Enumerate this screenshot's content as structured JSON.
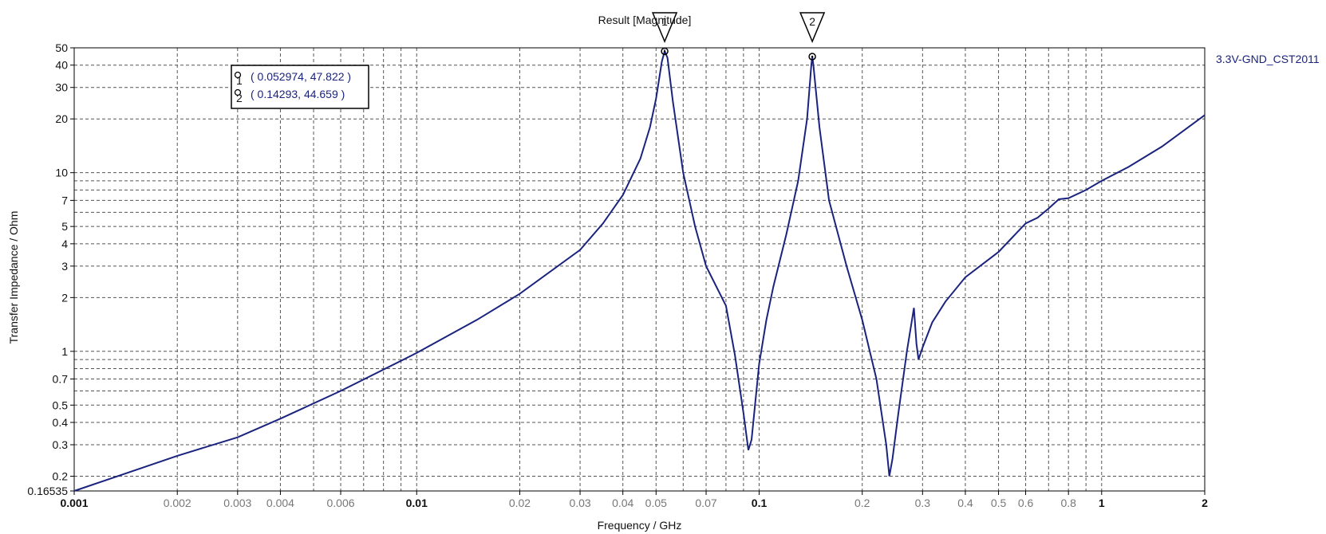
{
  "chart_data": {
    "type": "line",
    "title": "Result [Magnitude]",
    "xlabel": "Frequency / GHz",
    "ylabel": "Transfer Impedance / Ohm",
    "x_scale": "log",
    "y_scale": "log",
    "xlim": [
      0.001,
      2
    ],
    "ylim": [
      0.16535,
      50
    ],
    "grid": true,
    "legend_position": "top-right",
    "x_tick_labels": [
      {
        "value": 0.001,
        "label": "0.001",
        "major": true
      },
      {
        "value": 0.002,
        "label": "0.002",
        "major": false
      },
      {
        "value": 0.003,
        "label": "0.003",
        "major": false
      },
      {
        "value": 0.004,
        "label": "0.004",
        "major": false
      },
      {
        "value": 0.006,
        "label": "0.006",
        "major": false
      },
      {
        "value": 0.01,
        "label": "0.01",
        "major": true
      },
      {
        "value": 0.02,
        "label": "0.02",
        "major": false
      },
      {
        "value": 0.03,
        "label": "0.03",
        "major": false
      },
      {
        "value": 0.04,
        "label": "0.04",
        "major": false
      },
      {
        "value": 0.05,
        "label": "0.05",
        "major": false
      },
      {
        "value": 0.07,
        "label": "0.07",
        "major": false
      },
      {
        "value": 0.1,
        "label": "0.1",
        "major": true
      },
      {
        "value": 0.2,
        "label": "0.2",
        "major": false
      },
      {
        "value": 0.3,
        "label": "0.3",
        "major": false
      },
      {
        "value": 0.4,
        "label": "0.4",
        "major": false
      },
      {
        "value": 0.5,
        "label": "0.5",
        "major": false
      },
      {
        "value": 0.6,
        "label": "0.6",
        "major": false
      },
      {
        "value": 0.8,
        "label": "0.8",
        "major": false
      },
      {
        "value": 1,
        "label": "1",
        "major": true
      },
      {
        "value": 2,
        "label": "2",
        "major": true
      }
    ],
    "y_tick_labels": [
      {
        "value": 50,
        "label": "50"
      },
      {
        "value": 40,
        "label": "40"
      },
      {
        "value": 30,
        "label": "30"
      },
      {
        "value": 20,
        "label": "20"
      },
      {
        "value": 10,
        "label": "10"
      },
      {
        "value": 7,
        "label": "7"
      },
      {
        "value": 5,
        "label": "5"
      },
      {
        "value": 4,
        "label": "4"
      },
      {
        "value": 3,
        "label": "3"
      },
      {
        "value": 2,
        "label": "2"
      },
      {
        "value": 1,
        "label": "1"
      },
      {
        "value": 0.7,
        "label": "0.7"
      },
      {
        "value": 0.5,
        "label": "0.5"
      },
      {
        "value": 0.4,
        "label": "0.4"
      },
      {
        "value": 0.3,
        "label": "0.3"
      },
      {
        "value": 0.2,
        "label": "0.2"
      },
      {
        "value": 0.16535,
        "label": "0.16535"
      }
    ],
    "series": [
      {
        "name": "3.3V-GND_CST2011",
        "color": "#1a237e",
        "points": [
          [
            0.001,
            0.16535
          ],
          [
            0.002,
            0.26
          ],
          [
            0.003,
            0.33
          ],
          [
            0.004,
            0.42
          ],
          [
            0.006,
            0.6
          ],
          [
            0.01,
            0.98
          ],
          [
            0.015,
            1.5
          ],
          [
            0.02,
            2.1
          ],
          [
            0.03,
            3.7
          ],
          [
            0.035,
            5.2
          ],
          [
            0.04,
            7.5
          ],
          [
            0.045,
            12.0
          ],
          [
            0.048,
            18.0
          ],
          [
            0.05,
            26.0
          ],
          [
            0.052,
            42.0
          ],
          [
            0.052974,
            47.822
          ],
          [
            0.054,
            44.0
          ],
          [
            0.056,
            25.0
          ],
          [
            0.06,
            10.0
          ],
          [
            0.065,
            5.0
          ],
          [
            0.07,
            3.0
          ],
          [
            0.08,
            1.8
          ],
          [
            0.085,
            0.95
          ],
          [
            0.09,
            0.45
          ],
          [
            0.093,
            0.28
          ],
          [
            0.095,
            0.32
          ],
          [
            0.1,
            0.85
          ],
          [
            0.105,
            1.5
          ],
          [
            0.11,
            2.3
          ],
          [
            0.12,
            4.5
          ],
          [
            0.13,
            9.0
          ],
          [
            0.138,
            20.0
          ],
          [
            0.142,
            40.0
          ],
          [
            0.14293,
            44.659
          ],
          [
            0.144,
            40.0
          ],
          [
            0.15,
            18.0
          ],
          [
            0.16,
            7.0
          ],
          [
            0.18,
            3.0
          ],
          [
            0.2,
            1.5
          ],
          [
            0.22,
            0.7
          ],
          [
            0.235,
            0.3
          ],
          [
            0.24,
            0.2
          ],
          [
            0.245,
            0.25
          ],
          [
            0.255,
            0.45
          ],
          [
            0.27,
            1.0
          ],
          [
            0.283,
            1.75
          ],
          [
            0.288,
            1.1
          ],
          [
            0.292,
            0.9
          ],
          [
            0.3,
            1.05
          ],
          [
            0.32,
            1.45
          ],
          [
            0.35,
            1.9
          ],
          [
            0.4,
            2.6
          ],
          [
            0.5,
            3.6
          ],
          [
            0.6,
            5.2
          ],
          [
            0.65,
            5.6
          ],
          [
            0.7,
            6.3
          ],
          [
            0.75,
            7.1
          ],
          [
            0.8,
            7.2
          ],
          [
            0.9,
            8.0
          ],
          [
            1.0,
            9.0
          ],
          [
            1.2,
            10.8
          ],
          [
            1.5,
            14.0
          ],
          [
            2.0,
            21.0
          ]
        ]
      }
    ],
    "markers": [
      {
        "id": "1",
        "x": 0.052974,
        "y": 47.822,
        "label": "( 0.052974, 47.822 )"
      },
      {
        "id": "2",
        "x": 0.14293,
        "y": 44.659,
        "label": "( 0.14293, 44.659 )"
      }
    ]
  },
  "colors": {
    "curve": "#1a237e",
    "grid": "#555555",
    "axis": "#000000",
    "text": "#111111",
    "label_muted": "#777777",
    "legend_text": "#1a237e"
  }
}
